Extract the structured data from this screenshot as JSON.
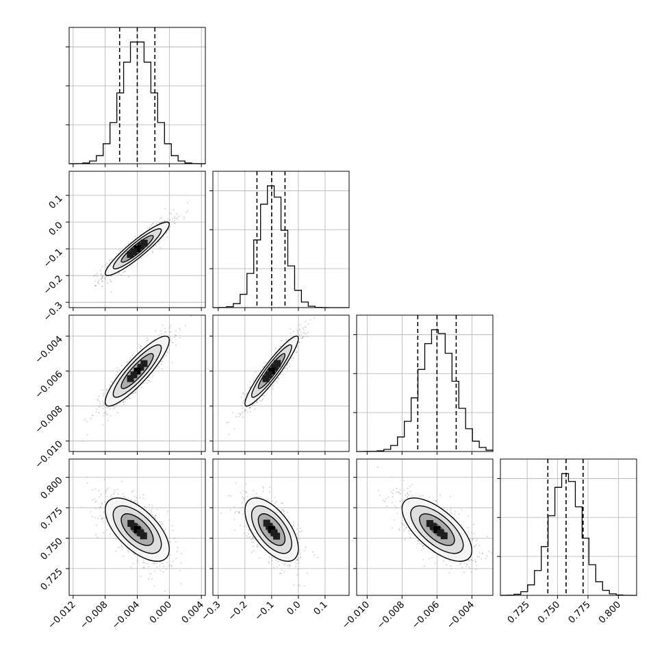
{
  "chart_data": {
    "type": "corner",
    "title": "",
    "grid": true,
    "colors": {
      "axis": "#000000",
      "grid": "#b0b0b0",
      "scatter": "#9a9a9a",
      "density": "#000000",
      "quantile": "#000000"
    },
    "parameters": [
      {
        "range": [
          -0.0125,
          0.0045
        ],
        "ticks": [
          -0.012,
          -0.008,
          -0.004,
          0.0,
          0.004
        ],
        "tick_labels": [
          "−0.012",
          "−0.008",
          "−0.004",
          "0.000",
          "0.004"
        ],
        "mean": -0.004,
        "sd": 0.002,
        "quantiles": [
          -0.0062,
          -0.004,
          -0.0018
        ],
        "hist_ylim": 1.12
      },
      {
        "range": [
          -0.32,
          0.19
        ],
        "ticks": [
          -0.3,
          -0.2,
          -0.1,
          0.0,
          0.1
        ],
        "tick_labels": [
          "−0.3",
          "−0.2",
          "−0.1",
          "0.0",
          "0.1"
        ],
        "mean": -0.1,
        "sd": 0.05,
        "quantiles": [
          -0.155,
          -0.1,
          -0.05
        ],
        "hist_ylim": 1.12
      },
      {
        "range": [
          -0.0106,
          -0.0028
        ],
        "ticks": [
          -0.01,
          -0.008,
          -0.006,
          -0.004
        ],
        "tick_labels": [
          "−0.010",
          "−0.008",
          "−0.006",
          "−0.004"
        ],
        "mean": -0.006,
        "sd": 0.001,
        "quantiles": [
          -0.0071,
          -0.006,
          -0.0049
        ],
        "hist_ylim": 1.12
      },
      {
        "range": [
          0.703,
          0.815
        ],
        "ticks": [
          0.725,
          0.75,
          0.775,
          0.8
        ],
        "tick_labels": [
          "0.725",
          "0.750",
          "0.775",
          "0.800"
        ],
        "mean": 0.757,
        "sd": 0.013,
        "quantiles": [
          0.742,
          0.757,
          0.771
        ],
        "hist_ylim": 1.12
      }
    ],
    "correlations": [
      [
        1.0,
        0.92,
        0.88,
        -0.62
      ],
      [
        0.92,
        1.0,
        0.93,
        -0.6
      ],
      [
        0.88,
        0.93,
        1.0,
        -0.66
      ],
      [
        -0.62,
        -0.6,
        -0.66,
        1.0
      ]
    ],
    "hist_bins": 20,
    "contour_levels_sigma": [
      0.5,
      1.0,
      1.5,
      2.0
    ]
  }
}
